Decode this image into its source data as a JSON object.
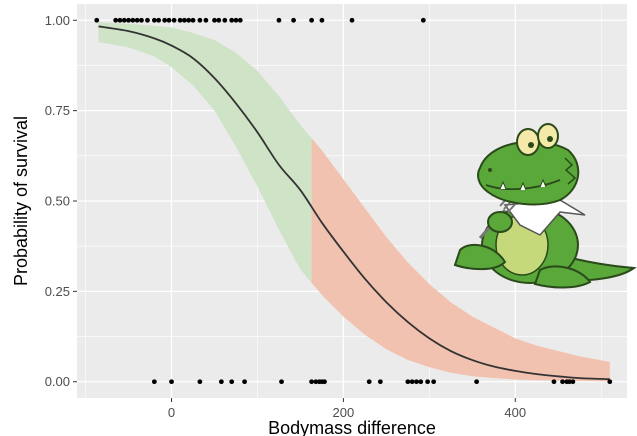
{
  "chart_data": {
    "type": "line",
    "title": "",
    "xlabel": "Bodymass difference",
    "ylabel": "Probability of survival",
    "xlim": [
      -110,
      530
    ],
    "ylim": [
      -0.045,
      1.045
    ],
    "x_ticks": [
      0,
      200,
      400
    ],
    "x_tick_labels": [
      "0",
      "200",
      "400"
    ],
    "y_ticks": [
      0,
      0.25,
      0.5,
      0.75,
      1
    ],
    "y_tick_labels": [
      "0.00",
      "0.25",
      "0.50",
      "0.75",
      "1.00"
    ],
    "grid": true,
    "background_color": "#ebebeb",
    "grid_color": "#ffffff",
    "line_color": "#333333",
    "point_color": "#000000",
    "ribbon_colors": {
      "survive": "#cfe3c6",
      "die": "#f2c2b0"
    },
    "ribbon_split_x": 163,
    "curve": [
      {
        "x": -85,
        "y": 0.983,
        "lo": 0.94,
        "hi": 0.995
      },
      {
        "x": -50,
        "y": 0.97,
        "lo": 0.925,
        "hi": 0.99
      },
      {
        "x": -20,
        "y": 0.95,
        "lo": 0.9,
        "hi": 0.985
      },
      {
        "x": 0,
        "y": 0.93,
        "lo": 0.87,
        "hi": 0.98
      },
      {
        "x": 25,
        "y": 0.895,
        "lo": 0.82,
        "hi": 0.965
      },
      {
        "x": 50,
        "y": 0.84,
        "lo": 0.75,
        "hi": 0.945
      },
      {
        "x": 75,
        "y": 0.77,
        "lo": 0.65,
        "hi": 0.91
      },
      {
        "x": 100,
        "y": 0.69,
        "lo": 0.54,
        "hi": 0.86
      },
      {
        "x": 125,
        "y": 0.6,
        "lo": 0.42,
        "hi": 0.79
      },
      {
        "x": 150,
        "y": 0.53,
        "lo": 0.31,
        "hi": 0.71
      },
      {
        "x": 175,
        "y": 0.44,
        "lo": 0.24,
        "hi": 0.64
      },
      {
        "x": 200,
        "y": 0.36,
        "lo": 0.18,
        "hi": 0.56
      },
      {
        "x": 225,
        "y": 0.285,
        "lo": 0.13,
        "hi": 0.48
      },
      {
        "x": 250,
        "y": 0.22,
        "lo": 0.09,
        "hi": 0.4
      },
      {
        "x": 275,
        "y": 0.165,
        "lo": 0.06,
        "hi": 0.33
      },
      {
        "x": 300,
        "y": 0.12,
        "lo": 0.04,
        "hi": 0.27
      },
      {
        "x": 325,
        "y": 0.085,
        "lo": 0.025,
        "hi": 0.22
      },
      {
        "x": 350,
        "y": 0.06,
        "lo": 0.015,
        "hi": 0.18
      },
      {
        "x": 375,
        "y": 0.042,
        "lo": 0.01,
        "hi": 0.15
      },
      {
        "x": 400,
        "y": 0.03,
        "lo": 0.006,
        "hi": 0.12
      },
      {
        "x": 425,
        "y": 0.021,
        "lo": 0.004,
        "hi": 0.1
      },
      {
        "x": 450,
        "y": 0.015,
        "lo": 0.003,
        "hi": 0.085
      },
      {
        "x": 475,
        "y": 0.01,
        "lo": 0.002,
        "hi": 0.07
      },
      {
        "x": 510,
        "y": 0.007,
        "lo": 0.001,
        "hi": 0.055
      }
    ],
    "points_survived": [
      -87,
      -65,
      -60,
      -55,
      -50,
      -45,
      -40,
      -35,
      -28,
      -20,
      -15,
      -8,
      -3,
      3,
      10,
      15,
      20,
      25,
      33,
      40,
      50,
      55,
      62,
      70,
      75,
      80,
      125,
      142,
      163,
      175,
      210,
      293
    ],
    "points_died": [
      -20,
      0,
      33,
      58,
      70,
      85,
      128,
      163,
      168,
      172,
      175,
      178,
      230,
      243,
      275,
      280,
      285,
      290,
      298,
      305,
      355,
      445,
      455,
      460,
      463,
      467,
      510
    ]
  },
  "mascot": {
    "description": "crocodile-mascot",
    "body_color": "#5aa83a",
    "belly_color": "#c6d97a",
    "outline_color": "#2a4a1a"
  }
}
